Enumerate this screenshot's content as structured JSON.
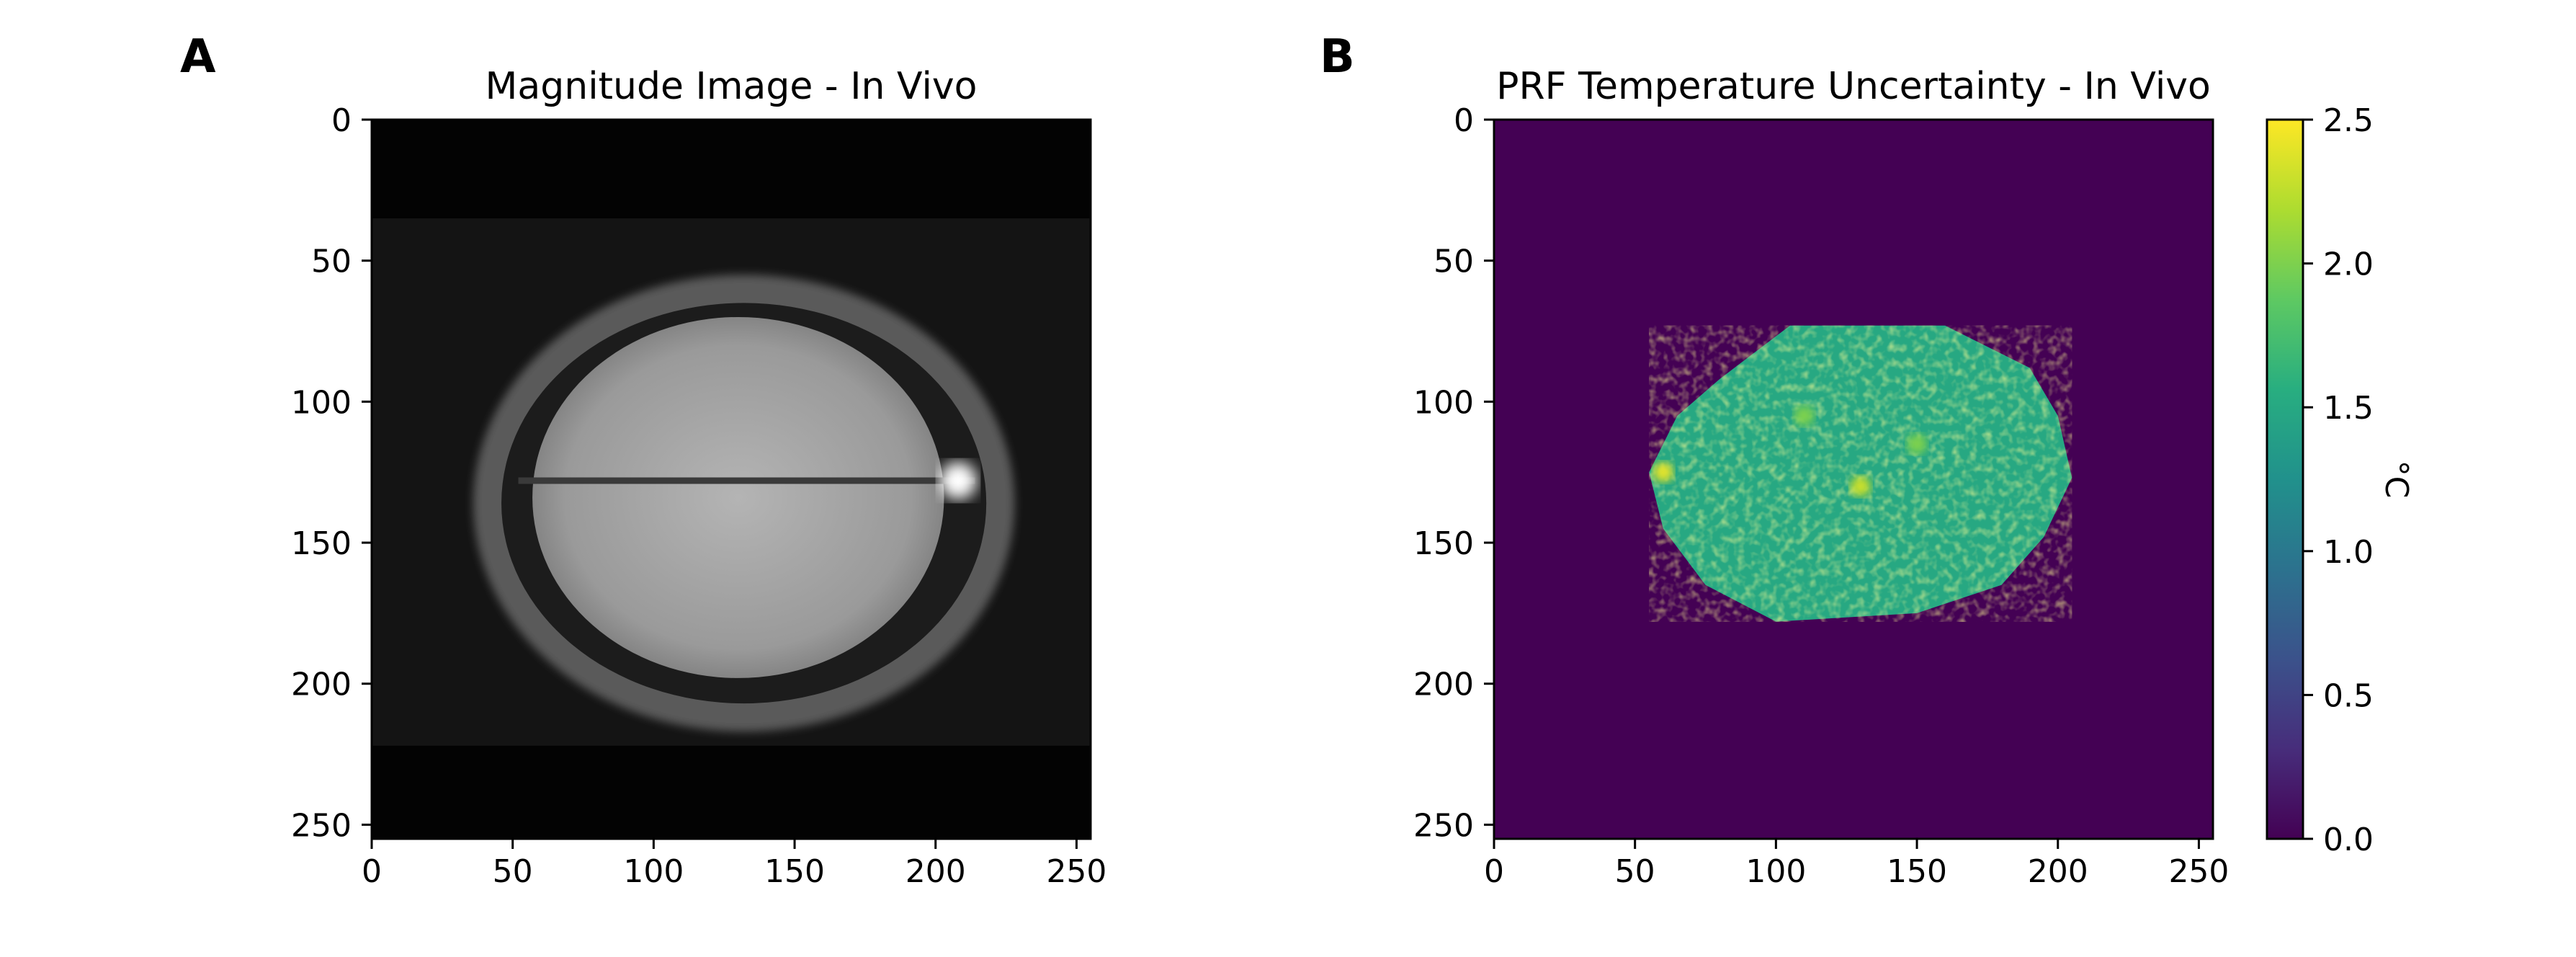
{
  "colors": {
    "background": "#ffffff",
    "axis": "#000000",
    "image_bg": "#030303",
    "viridis_low": "#440154",
    "viridis_high": "#fde725"
  },
  "chart_data": [
    {
      "type": "heatmap",
      "panel": "A",
      "title": "Magnitude Image - In Vivo",
      "colormap": "gray",
      "xlabel": "",
      "ylabel": "",
      "xlim": [
        0,
        255
      ],
      "ylim": [
        255,
        0
      ],
      "xticks": [
        0,
        50,
        100,
        150,
        200,
        250
      ],
      "yticks": [
        0,
        50,
        100,
        150,
        200,
        250
      ],
      "xtick_labels": [
        "0",
        "50",
        "100",
        "150",
        "200",
        "250"
      ],
      "ytick_labels": [
        "0",
        "50",
        "100",
        "150",
        "200",
        "250"
      ],
      "image_description_elements": {
        "field_of_view_band": {
          "x": [
            0,
            255
          ],
          "y": [
            35,
            222
          ]
        },
        "skull_outline": {
          "cx": 132,
          "cy": 136,
          "rx": 96,
          "ry": 81
        },
        "brain": {
          "cx": 130,
          "cy": 134,
          "rx": 73,
          "ry": 64
        },
        "midline": {
          "x": [
            52,
            214
          ],
          "y": 128
        },
        "bright_spot": {
          "x": 208,
          "y": 128
        }
      }
    },
    {
      "type": "heatmap",
      "panel": "B",
      "title": "PRF Temperature Uncertainty - In Vivo",
      "colormap": "viridis",
      "xlabel": "",
      "ylabel": "",
      "xlim": [
        0,
        255
      ],
      "ylim": [
        255,
        0
      ],
      "xticks": [
        0,
        50,
        100,
        150,
        200,
        250
      ],
      "yticks": [
        0,
        50,
        100,
        150,
        200,
        250
      ],
      "xtick_labels": [
        "0",
        "50",
        "100",
        "150",
        "200",
        "250"
      ],
      "ytick_labels": [
        "0",
        "50",
        "100",
        "150",
        "200",
        "250"
      ],
      "background_value": 0.0,
      "brain_mask_polygon": [
        [
          65,
          105
        ],
        [
          80,
          92
        ],
        [
          105,
          73
        ],
        [
          160,
          73
        ],
        [
          190,
          88
        ],
        [
          200,
          105
        ],
        [
          205,
          127
        ],
        [
          195,
          148
        ],
        [
          180,
          165
        ],
        [
          150,
          175
        ],
        [
          100,
          178
        ],
        [
          75,
          165
        ],
        [
          60,
          145
        ],
        [
          55,
          125
        ]
      ],
      "brain_mean_value": 1.5,
      "hotspots": [
        {
          "x": 60,
          "y": 125,
          "value": 2.4
        },
        {
          "x": 130,
          "y": 130,
          "value": 2.3
        },
        {
          "x": 110,
          "y": 105,
          "value": 2.0
        },
        {
          "x": 150,
          "y": 115,
          "value": 2.0
        }
      ],
      "colorbar": {
        "label": "°C",
        "min": 0.0,
        "max": 2.5,
        "ticks": [
          0.0,
          0.5,
          1.0,
          1.5,
          2.0,
          2.5
        ],
        "tick_labels": [
          "0.0",
          "0.5",
          "1.0",
          "1.5",
          "2.0",
          "2.5"
        ]
      }
    }
  ]
}
